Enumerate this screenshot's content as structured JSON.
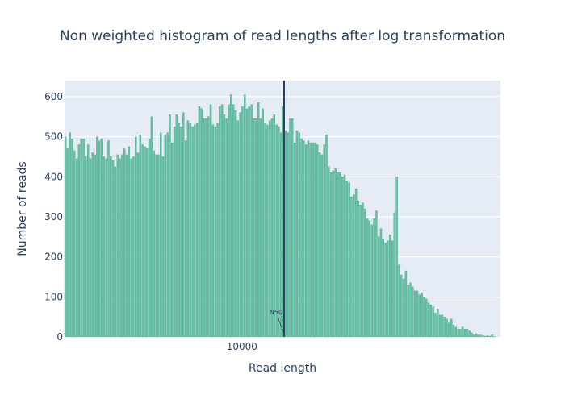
{
  "chart_data": {
    "type": "bar",
    "title": "Non weighted histogram of read lengths after log transformation",
    "xlabel": "Read length",
    "ylabel": "Number of reads",
    "x_scale": "log",
    "xlim": [
      3010,
      57500
    ],
    "ylim": [
      0,
      640
    ],
    "y_ticks": [
      0,
      100,
      200,
      300,
      400,
      500,
      600
    ],
    "x_ticks": [
      10000
    ],
    "x_tick_labels": [
      "10000"
    ],
    "grid": true,
    "legend": "none",
    "colors": {
      "bar": "#66c2a5",
      "bar_edge": "#3a9d7c",
      "plot_bg": "#e5ecf6",
      "grid": "#ffffff",
      "n50_line": "#2a3f5f",
      "text": "#2a3f5f"
    },
    "n50": {
      "label": "N50",
      "value": 13300
    },
    "values": [
      500,
      470,
      510,
      495,
      465,
      445,
      480,
      495,
      495,
      450,
      480,
      445,
      460,
      455,
      500,
      490,
      495,
      450,
      445,
      490,
      450,
      440,
      425,
      455,
      445,
      455,
      470,
      455,
      475,
      445,
      450,
      500,
      460,
      505,
      480,
      475,
      470,
      495,
      550,
      465,
      455,
      455,
      510,
      450,
      505,
      510,
      555,
      485,
      525,
      555,
      535,
      525,
      560,
      490,
      540,
      535,
      525,
      530,
      535,
      575,
      570,
      545,
      545,
      550,
      580,
      530,
      525,
      535,
      575,
      580,
      555,
      545,
      580,
      605,
      580,
      565,
      540,
      560,
      575,
      605,
      570,
      575,
      580,
      545,
      545,
      585,
      545,
      570,
      535,
      530,
      540,
      545,
      555,
      530,
      525,
      510,
      575,
      515,
      510,
      545,
      545,
      485,
      515,
      510,
      495,
      490,
      480,
      490,
      485,
      485,
      485,
      480,
      460,
      455,
      480,
      505,
      425,
      410,
      415,
      420,
      410,
      410,
      400,
      405,
      390,
      385,
      350,
      355,
      370,
      340,
      330,
      335,
      320,
      295,
      290,
      280,
      295,
      315,
      250,
      270,
      245,
      235,
      240,
      255,
      240,
      310,
      400,
      180,
      155,
      145,
      165,
      130,
      135,
      125,
      115,
      115,
      105,
      110,
      100,
      95,
      85,
      80,
      75,
      60,
      70,
      55,
      55,
      50,
      45,
      35,
      45,
      30,
      25,
      20,
      20,
      25,
      20,
      20,
      15,
      10,
      5,
      8,
      5,
      5,
      3,
      2,
      3,
      2,
      5,
      1,
      0,
      0
    ]
  }
}
